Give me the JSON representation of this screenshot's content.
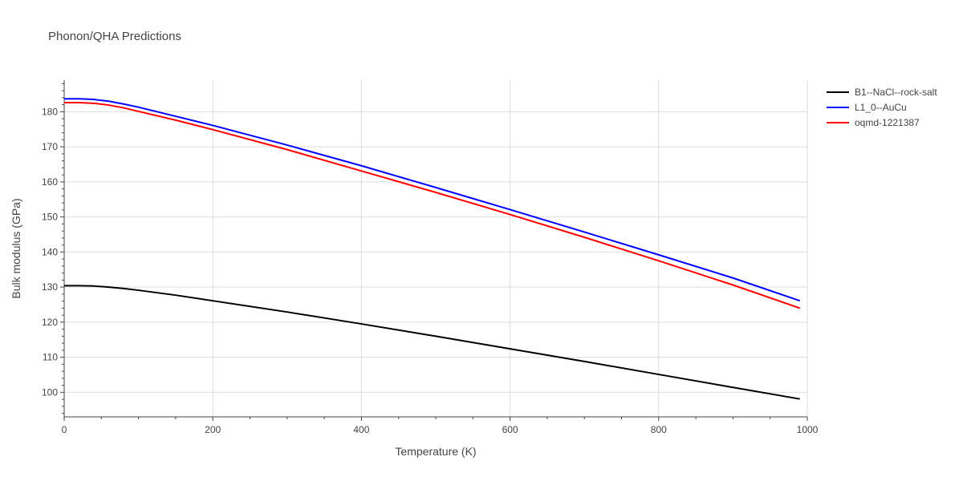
{
  "chart_data": {
    "type": "line",
    "title": "Phonon/QHA Predictions",
    "xlabel": "Temperature (K)",
    "ylabel": "Bulk modulus (GPa)",
    "xlim": [
      0,
      1000
    ],
    "ylim": [
      93,
      189
    ],
    "xticks": [
      0,
      200,
      400,
      600,
      800,
      1000
    ],
    "yticks": [
      100,
      110,
      120,
      130,
      140,
      150,
      160,
      170,
      180
    ],
    "grid": true,
    "legend_position": "top-right",
    "series": [
      {
        "name": "B1--NaCl--rock-salt",
        "color": "#000000",
        "x": [
          0,
          20,
          40,
          60,
          80,
          100,
          150,
          200,
          300,
          400,
          500,
          600,
          700,
          800,
          900,
          990
        ],
        "y": [
          130.4,
          130.4,
          130.3,
          130.0,
          129.6,
          129.1,
          127.7,
          126.1,
          122.9,
          119.5,
          116.0,
          112.4,
          108.8,
          105.1,
          101.4,
          98.1
        ]
      },
      {
        "name": "L1_0--AuCu",
        "color": "#0000ff",
        "x": [
          0,
          20,
          40,
          60,
          80,
          100,
          150,
          200,
          300,
          400,
          500,
          600,
          700,
          800,
          900,
          990
        ],
        "y": [
          183.7,
          183.7,
          183.5,
          183.0,
          182.2,
          181.3,
          178.7,
          176.1,
          170.5,
          164.6,
          158.4,
          152.1,
          145.7,
          139.2,
          132.6,
          126.1
        ]
      },
      {
        "name": "oqmd-1221387",
        "color": "#ff0000",
        "x": [
          0,
          20,
          40,
          60,
          80,
          100,
          150,
          200,
          300,
          400,
          500,
          600,
          700,
          800,
          900,
          990
        ],
        "y": [
          182.6,
          182.6,
          182.4,
          181.9,
          181.1,
          180.1,
          177.6,
          174.9,
          169.2,
          163.1,
          157.0,
          150.7,
          144.2,
          137.5,
          130.6,
          124.0
        ]
      }
    ]
  }
}
